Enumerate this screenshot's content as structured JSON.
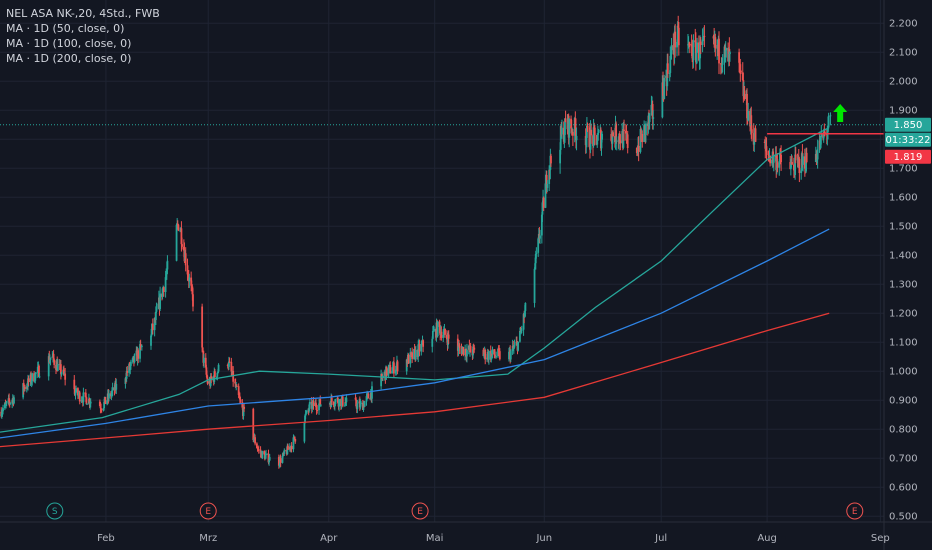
{
  "legend": {
    "title": "NEL ASA NK-,20, 4Std., FWB",
    "ma": [
      {
        "label": "MA · 1D (50, close, 0)"
      },
      {
        "label": "MA · 1D (100, close, 0)"
      },
      {
        "label": "MA · 1D (200, close, 0)"
      }
    ]
  },
  "price_tags": {
    "last": {
      "text": "1.850",
      "value": 1.85,
      "color": "#26a69a"
    },
    "countdown": {
      "text": "01:33:22",
      "color": "#26a69a"
    },
    "line": {
      "text": "1.819",
      "value": 1.819,
      "color": "#f23645"
    }
  },
  "colors": {
    "up": "#26a69a",
    "down": "#ef5350",
    "ma50": "#26a69a",
    "ma100": "#2e84e6",
    "ma200": "#e53935",
    "arrow": "#00e600",
    "grid": "#1f2433",
    "axis_text": "#b2b5be"
  },
  "markers": [
    {
      "label": "S",
      "date": "2023-01-18",
      "color": "#26a69a",
      "icon": "split-marker-icon"
    },
    {
      "label": "E",
      "date": "2023-03-01",
      "color": "#ef5350",
      "icon": "earnings-marker-icon"
    },
    {
      "label": "E",
      "date": "2023-04-28",
      "color": "#ef5350",
      "icon": "earnings-marker-icon"
    },
    {
      "label": "E",
      "date": "2023-08-25",
      "color": "#ef5350",
      "icon": "earnings-marker-icon"
    }
  ],
  "annotations": {
    "arrow": {
      "icon": "up-arrow-icon",
      "date": "2023-08-21",
      "value": 1.88
    },
    "hline": {
      "value": 1.819,
      "start_date": "2023-08-01"
    }
  },
  "chart_data": {
    "type": "candlestick",
    "y_ticks": [
      "0.500",
      "0.600",
      "0.700",
      "0.800",
      "0.900",
      "1.000",
      "1.100",
      "1.200",
      "1.300",
      "1.400",
      "1.500",
      "1.600",
      "1.700",
      "1.800",
      "1.900",
      "2.000",
      "2.100",
      "2.200"
    ],
    "ylim": [
      0.48,
      2.28
    ],
    "x_ticks": [
      {
        "label": "Feb",
        "date": "2023-02-01"
      },
      {
        "label": "Mrz",
        "date": "2023-03-01"
      },
      {
        "label": "Apr",
        "date": "2023-04-03"
      },
      {
        "label": "Mai",
        "date": "2023-05-02"
      },
      {
        "label": "Jun",
        "date": "2023-06-01"
      },
      {
        "label": "Jul",
        "date": "2023-07-03"
      },
      {
        "label": "Aug",
        "date": "2023-08-01"
      },
      {
        "label": "Sep",
        "date": "2023-09-01"
      }
    ],
    "xlim": [
      "2023-01-03",
      "2023-09-02"
    ],
    "grid": true,
    "price_path": [
      [
        "2023-01-03",
        0.86
      ],
      [
        "2023-01-10",
        0.95
      ],
      [
        "2023-01-17",
        1.05
      ],
      [
        "2023-01-24",
        0.92
      ],
      [
        "2023-01-31",
        0.88
      ],
      [
        "2023-02-07",
        1.0
      ],
      [
        "2023-02-14",
        1.15
      ],
      [
        "2023-02-21",
        1.52
      ],
      [
        "2023-02-24",
        1.3
      ],
      [
        "2023-03-01",
        0.95
      ],
      [
        "2023-03-06",
        1.05
      ],
      [
        "2023-03-10",
        0.88
      ],
      [
        "2023-03-15",
        0.72
      ],
      [
        "2023-03-20",
        0.68
      ],
      [
        "2023-03-24",
        0.75
      ],
      [
        "2023-03-29",
        0.88
      ],
      [
        "2023-04-05",
        0.9
      ],
      [
        "2023-04-12",
        0.88
      ],
      [
        "2023-04-19",
        1.0
      ],
      [
        "2023-04-26",
        1.05
      ],
      [
        "2023-05-03",
        1.15
      ],
      [
        "2023-05-08",
        1.08
      ],
      [
        "2023-05-15",
        1.06
      ],
      [
        "2023-05-22",
        1.05
      ],
      [
        "2023-05-25",
        1.1
      ],
      [
        "2023-05-30",
        1.4
      ],
      [
        "2023-06-02",
        1.7
      ],
      [
        "2023-06-07",
        1.85
      ],
      [
        "2023-06-14",
        1.8
      ],
      [
        "2023-06-21",
        1.82
      ],
      [
        "2023-06-26",
        1.76
      ],
      [
        "2023-07-03",
        1.95
      ],
      [
        "2023-07-07",
        2.15
      ],
      [
        "2023-07-12",
        2.1
      ],
      [
        "2023-07-17",
        2.12
      ],
      [
        "2023-07-24",
        2.05
      ],
      [
        "2023-07-28",
        1.82
      ],
      [
        "2023-08-01",
        1.75
      ],
      [
        "2023-08-07",
        1.7
      ],
      [
        "2023-08-14",
        1.74
      ],
      [
        "2023-08-18",
        1.85
      ]
    ],
    "series": [
      {
        "name": "MA · 1D (50, close, 0)",
        "color": "#26a69a",
        "points": [
          [
            "2023-01-03",
            0.79
          ],
          [
            "2023-01-31",
            0.84
          ],
          [
            "2023-02-21",
            0.92
          ],
          [
            "2023-03-01",
            0.97
          ],
          [
            "2023-03-15",
            1.0
          ],
          [
            "2023-04-03",
            0.99
          ],
          [
            "2023-05-02",
            0.97
          ],
          [
            "2023-05-22",
            0.99
          ],
          [
            "2023-06-01",
            1.08
          ],
          [
            "2023-06-15",
            1.22
          ],
          [
            "2023-07-03",
            1.38
          ],
          [
            "2023-07-17",
            1.55
          ],
          [
            "2023-08-01",
            1.73
          ],
          [
            "2023-08-18",
            1.84
          ]
        ]
      },
      {
        "name": "MA · 1D (100, close, 0)",
        "color": "#2e84e6",
        "points": [
          [
            "2023-01-03",
            0.77
          ],
          [
            "2023-02-01",
            0.82
          ],
          [
            "2023-03-01",
            0.88
          ],
          [
            "2023-04-03",
            0.91
          ],
          [
            "2023-05-02",
            0.96
          ],
          [
            "2023-06-01",
            1.04
          ],
          [
            "2023-07-03",
            1.2
          ],
          [
            "2023-08-01",
            1.38
          ],
          [
            "2023-08-18",
            1.49
          ]
        ]
      },
      {
        "name": "MA · 1D (200, close, 0)",
        "color": "#e53935",
        "points": [
          [
            "2023-01-03",
            0.74
          ],
          [
            "2023-02-01",
            0.77
          ],
          [
            "2023-03-01",
            0.8
          ],
          [
            "2023-04-03",
            0.83
          ],
          [
            "2023-05-02",
            0.86
          ],
          [
            "2023-06-01",
            0.91
          ],
          [
            "2023-07-03",
            1.03
          ],
          [
            "2023-08-01",
            1.14
          ],
          [
            "2023-08-18",
            1.2
          ]
        ]
      }
    ]
  }
}
